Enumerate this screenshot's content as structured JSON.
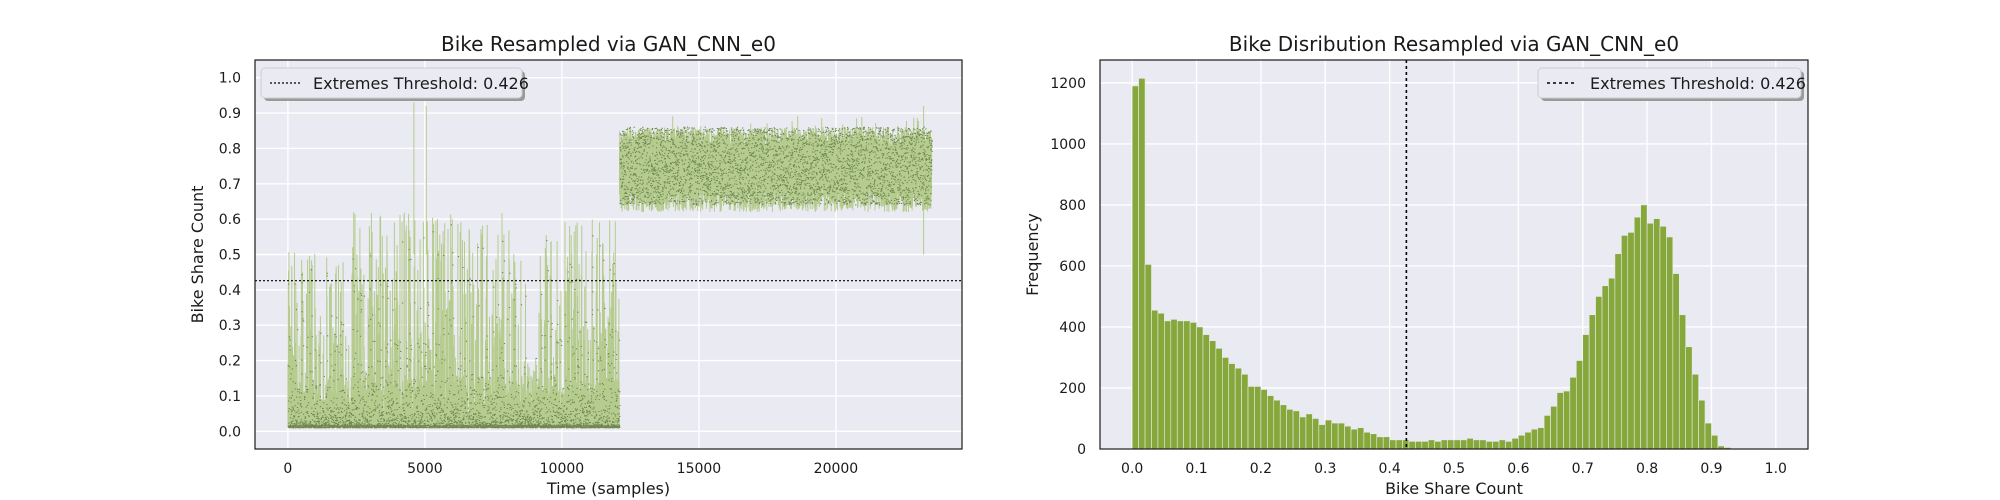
{
  "chart_data": [
    {
      "type": "line",
      "title": "Bike Resampled via GAN_CNN_e0",
      "xlabel": "Time (samples)",
      "ylabel": "Bike Share Count",
      "xlim": [
        -1200,
        24600
      ],
      "ylim": [
        -0.05,
        1.05
      ],
      "xticks": [
        0,
        5000,
        10000,
        15000,
        20000
      ],
      "yticks": [
        "0.0",
        "0.1",
        "0.2",
        "0.3",
        "0.4",
        "0.5",
        "0.6",
        "0.7",
        "0.8",
        "0.9",
        "1.0"
      ],
      "grid": true,
      "legend_placement": "upper left",
      "threshold": {
        "label": "Extremes Threshold: 0.426",
        "value": 0.426,
        "style": "dotted"
      },
      "segments": [
        {
          "x": [
            0,
            2100
          ],
          "low": 0.01,
          "mid": 0.08,
          "high": 0.45,
          "peak": 0.52
        },
        {
          "x": [
            2100,
            8300
          ],
          "low": 0.01,
          "mid": 0.12,
          "high": 0.52,
          "peak": 0.62
        },
        {
          "x": [
            8300,
            9200
          ],
          "low": 0.01,
          "mid": 0.08,
          "high": 0.2,
          "peak": 0.5
        },
        {
          "x": [
            9200,
            12100
          ],
          "low": 0.01,
          "mid": 0.1,
          "high": 0.5,
          "peak": 0.6
        },
        {
          "x": [
            12100,
            23500
          ],
          "low": 0.62,
          "mid": 0.75,
          "high": 0.86,
          "peak": 0.9
        }
      ],
      "spikes": [
        {
          "x": 4600,
          "value": 0.93
        },
        {
          "x": 5050,
          "value": 0.92
        },
        {
          "x": 23200,
          "value": 0.92
        }
      ],
      "colors": {
        "light": "#b5cc8e",
        "dark": "#6f8752",
        "threshold": "#000000"
      }
    },
    {
      "type": "bar",
      "title": "Bike Disribution Resampled via GAN_CNN_e0",
      "xlabel": "Bike Share Count",
      "ylabel": "Frequency",
      "xlim": [
        -0.05,
        1.05
      ],
      "ylim": [
        0,
        1275
      ],
      "xticks": [
        "0.0",
        "0.1",
        "0.2",
        "0.3",
        "0.4",
        "0.5",
        "0.6",
        "0.7",
        "0.8",
        "0.9",
        "1.0"
      ],
      "yticks": [
        "0",
        "200",
        "400",
        "600",
        "800",
        "1000",
        "1200"
      ],
      "grid": true,
      "legend_placement": "upper right",
      "threshold": {
        "label": "Extremes Threshold: 0.426",
        "value": 0.426,
        "style": "dotted"
      },
      "bin_start": 0.0,
      "bin_width": 0.01,
      "counts": [
        1190,
        1215,
        605,
        455,
        445,
        420,
        425,
        420,
        420,
        415,
        400,
        375,
        355,
        330,
        300,
        280,
        265,
        245,
        205,
        205,
        195,
        175,
        160,
        145,
        130,
        125,
        105,
        115,
        100,
        80,
        95,
        85,
        85,
        75,
        65,
        70,
        55,
        50,
        40,
        40,
        30,
        30,
        30,
        25,
        25,
        25,
        30,
        25,
        30,
        30,
        30,
        30,
        35,
        30,
        30,
        25,
        25,
        30,
        25,
        35,
        45,
        55,
        65,
        70,
        110,
        140,
        185,
        190,
        235,
        290,
        375,
        440,
        500,
        535,
        560,
        640,
        700,
        710,
        760,
        800,
        740,
        755,
        730,
        695,
        575,
        440,
        335,
        245,
        160,
        85,
        45,
        10,
        5,
        0,
        0,
        0,
        0,
        0,
        0,
        0,
        0
      ],
      "colors": {
        "bar": "#86a83a",
        "threshold": "#000000"
      }
    }
  ]
}
